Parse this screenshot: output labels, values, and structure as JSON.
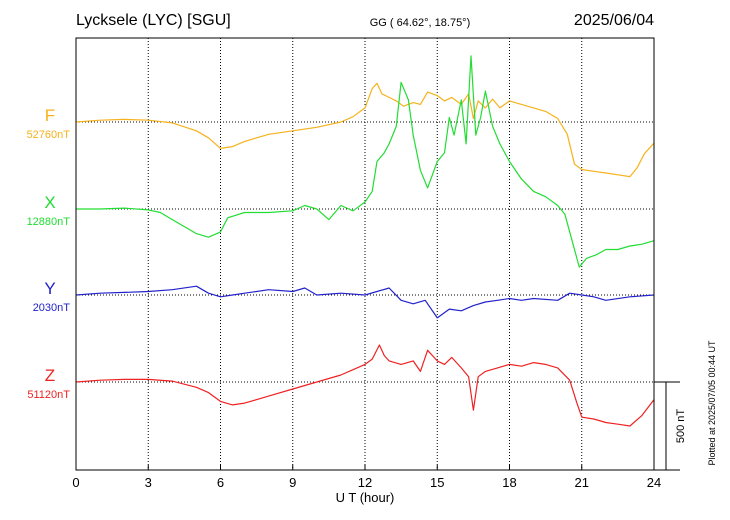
{
  "chart_data": {
    "type": "line",
    "title": "Lycksele (LYC)  [SGU]",
    "coords": "GG ( 64.62°,  18.75°)",
    "date": "2025/06/04",
    "xlabel": "U T (hour)",
    "xlim": [
      0,
      24
    ],
    "xticks": [
      0,
      3,
      6,
      9,
      12,
      15,
      18,
      21,
      24
    ],
    "grid": true,
    "scale_label": "500 nT",
    "scale_nT": 500,
    "footer": "Plotted at 2025/07/05 00:44 UT",
    "series": [
      {
        "name": "F",
        "baseline_label": "52760nT",
        "baseline_nT": 52760,
        "color": "#f5b21c",
        "x": [
          0,
          1,
          2,
          3,
          4,
          5,
          5.5,
          6,
          6.5,
          7,
          8,
          9,
          10,
          11,
          11.5,
          12,
          12.3,
          12.5,
          12.7,
          13,
          13.3,
          13.6,
          14,
          14.3,
          14.6,
          15,
          15.3,
          15.6,
          16,
          16.3,
          16.5,
          16.7,
          17,
          17.3,
          17.6,
          18,
          18.5,
          19,
          19.5,
          20,
          20.4,
          20.7,
          21,
          21.5,
          22,
          22.5,
          23,
          23.3,
          23.6,
          24
        ],
        "y": [
          52760,
          52770,
          52775,
          52770,
          52755,
          52710,
          52670,
          52610,
          52620,
          52650,
          52690,
          52710,
          52730,
          52760,
          52790,
          52840,
          52950,
          52980,
          52920,
          52900,
          52880,
          52850,
          52870,
          52860,
          52930,
          52910,
          52880,
          52900,
          52860,
          52920,
          52780,
          52880,
          52840,
          52890,
          52840,
          52880,
          52860,
          52840,
          52820,
          52780,
          52690,
          52520,
          52490,
          52480,
          52470,
          52460,
          52450,
          52500,
          52580,
          52640
        ]
      },
      {
        "name": "X",
        "baseline_label": "12880nT",
        "baseline_nT": 12880,
        "color": "#22dd33",
        "x": [
          0,
          1,
          2,
          3,
          3.5,
          4,
          4.5,
          5,
          5.5,
          6,
          6.3,
          7,
          8,
          9,
          9.5,
          10,
          10.5,
          11,
          11.5,
          12,
          12.3,
          12.5,
          12.8,
          13,
          13.3,
          13.5,
          13.8,
          14,
          14.3,
          14.6,
          15,
          15.3,
          15.5,
          15.7,
          16,
          16.2,
          16.4,
          16.6,
          16.8,
          17,
          17.3,
          17.6,
          18,
          18.5,
          19,
          19.5,
          20,
          20.3,
          20.6,
          20.9,
          21.2,
          21.6,
          22,
          22.5,
          23,
          23.5,
          24
        ],
        "y": [
          12880,
          12880,
          12885,
          12875,
          12860,
          12820,
          12780,
          12740,
          12720,
          12750,
          12830,
          12860,
          12860,
          12870,
          12900,
          12880,
          12820,
          12900,
          12870,
          12920,
          12980,
          13150,
          13200,
          13250,
          13350,
          13600,
          13500,
          13300,
          13100,
          13000,
          13150,
          13200,
          13400,
          13300,
          13500,
          13250,
          13750,
          13300,
          13400,
          13550,
          13350,
          13250,
          13150,
          13050,
          12980,
          12950,
          12900,
          12850,
          12700,
          12550,
          12600,
          12620,
          12650,
          12650,
          12670,
          12680,
          12700
        ]
      },
      {
        "name": "Y",
        "baseline_label": "2030nT",
        "baseline_nT": 2030,
        "color": "#2222cc",
        "x": [
          0,
          1,
          2,
          3,
          4,
          5,
          5.5,
          6,
          6.5,
          7,
          8,
          9,
          9.5,
          10,
          11,
          12,
          12.5,
          13,
          13.5,
          14,
          14.5,
          15,
          15.5,
          16,
          16.5,
          17,
          17.5,
          18,
          18.5,
          19,
          20,
          20.5,
          21,
          21.5,
          22,
          23,
          24
        ],
        "y": [
          2030,
          2040,
          2045,
          2050,
          2060,
          2080,
          2040,
          2020,
          2030,
          2040,
          2060,
          2050,
          2070,
          2030,
          2040,
          2030,
          2050,
          2070,
          2000,
          1980,
          2000,
          1900,
          1950,
          1940,
          1970,
          1990,
          2000,
          2010,
          2000,
          2010,
          2000,
          2040,
          2030,
          2020,
          2000,
          2020,
          2030
        ]
      },
      {
        "name": "Z",
        "baseline_label": "51120nT",
        "baseline_nT": 51120,
        "color": "#ee2222",
        "x": [
          0,
          1,
          2,
          3,
          4,
          5,
          5.5,
          6,
          6.5,
          7,
          8,
          9,
          10,
          11,
          11.5,
          12,
          12.3,
          12.6,
          12.8,
          13,
          13.5,
          14,
          14.3,
          14.6,
          15,
          15.3,
          15.6,
          16,
          16.3,
          16.5,
          16.7,
          17,
          17.5,
          18,
          18.5,
          19,
          19.5,
          20,
          20.5,
          20.8,
          21,
          21.5,
          22,
          22.5,
          23,
          23.5,
          24
        ],
        "y": [
          51120,
          51130,
          51135,
          51135,
          51125,
          51090,
          51060,
          51010,
          50990,
          51000,
          51040,
          51080,
          51120,
          51160,
          51190,
          51220,
          51250,
          51330,
          51270,
          51240,
          51220,
          51240,
          51180,
          51300,
          51240,
          51220,
          51260,
          51200,
          51150,
          50960,
          51150,
          51180,
          51200,
          51220,
          51210,
          51230,
          51220,
          51200,
          51130,
          51000,
          50920,
          50910,
          50890,
          50880,
          50870,
          50930,
          51020
        ]
      }
    ]
  }
}
